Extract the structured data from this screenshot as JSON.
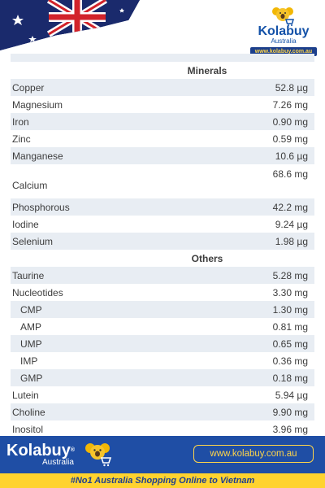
{
  "header": {
    "brand_name": "Kolabuy",
    "brand_sub": "Australia",
    "brand_url": "www.kolabuy.com.au"
  },
  "table": {
    "minerals_title": "Minerals",
    "minerals": [
      {
        "name": "Copper",
        "value": "52.8 µg"
      },
      {
        "name": "Magnesium",
        "value": "7.26 mg"
      },
      {
        "name": "Iron",
        "value": "0.90 mg"
      },
      {
        "name": "Zinc",
        "value": "0.59 mg"
      },
      {
        "name": "Manganese",
        "value": "10.6 µg"
      },
      {
        "name": "Calcium",
        "value": "68.6 mg"
      },
      {
        "name": "Phosphorous",
        "value": "42.2 mg"
      },
      {
        "name": "Iodine",
        "value": "9.24 µg"
      },
      {
        "name": "Selenium",
        "value": "1.98 µg"
      }
    ],
    "others_title": "Others",
    "others": [
      {
        "name": "Taurine",
        "value": "5.28 mg"
      },
      {
        "name": "Nucleotides",
        "value": "3.30 mg"
      },
      {
        "name": "CMP",
        "value": "1.30 mg"
      },
      {
        "name": "AMP",
        "value": "0.81 mg"
      },
      {
        "name": "UMP",
        "value": "0.65 mg"
      },
      {
        "name": "IMP",
        "value": "0.36 mg"
      },
      {
        "name": "GMP",
        "value": "0.18 mg"
      },
      {
        "name": "Lutein",
        "value": "5.94 µg"
      },
      {
        "name": "Choline",
        "value": "9.90 mg"
      },
      {
        "name": "Inositol",
        "value": "3.96 mg"
      }
    ]
  },
  "footer": {
    "brand_name": "Kolabuy",
    "brand_reg": "®",
    "brand_sub": "Australia",
    "url": "www.kolabuy.com.au",
    "tagline": "#No1 Australia Shopping Online to Vietnam"
  },
  "colors": {
    "brand_blue": "#1f4ea5",
    "accent_yellow": "#ffd32e",
    "row_alt": "#e8edf3"
  }
}
